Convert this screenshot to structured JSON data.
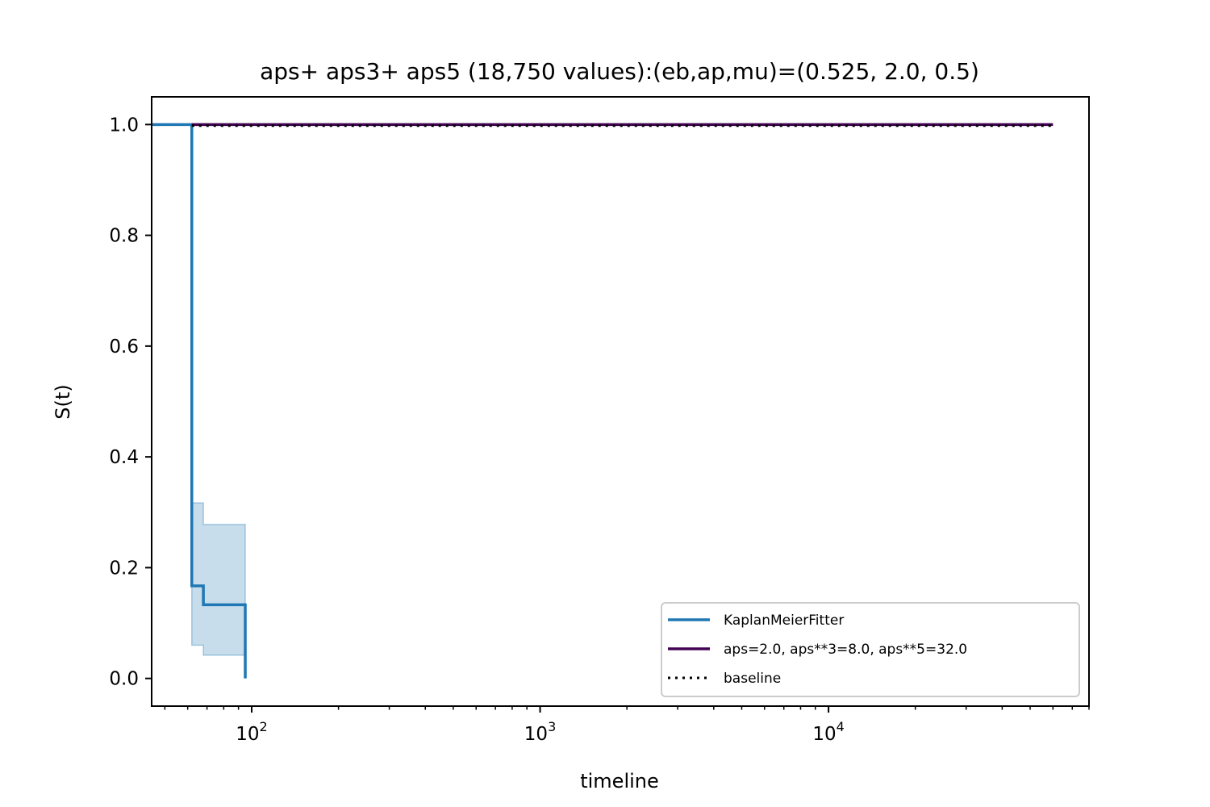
{
  "chart_data": {
    "type": "line",
    "title": "aps+ aps3+ aps5 (18,750 values):(eb,ap,mu)=(0.525, 2.0, 0.5)",
    "xlabel": "timeline",
    "ylabel": "S(t)",
    "xscale": "log",
    "xlim": [
      45,
      80000
    ],
    "ylim": [
      -0.05,
      1.05
    ],
    "grid": false,
    "legend_position": "lower-right",
    "x_ticks": [
      {
        "value": 100,
        "base": "10",
        "exp": "2"
      },
      {
        "value": 1000,
        "base": "10",
        "exp": "3"
      },
      {
        "value": 10000,
        "base": "10",
        "exp": "4"
      }
    ],
    "y_ticks": [
      {
        "value": 0.0,
        "label": "0.0"
      },
      {
        "value": 0.2,
        "label": "0.2"
      },
      {
        "value": 0.4,
        "label": "0.4"
      },
      {
        "value": 0.6,
        "label": "0.6"
      },
      {
        "value": 0.8,
        "label": "0.8"
      },
      {
        "value": 1.0,
        "label": "1.0"
      }
    ],
    "series": [
      {
        "name": "KaplanMeierFitter",
        "style": "step",
        "color": "#1f77b4",
        "x": [
          45,
          62,
          62,
          68,
          68,
          95,
          95
        ],
        "y": [
          1.0,
          1.0,
          0.167,
          0.167,
          0.133,
          0.133,
          0.0
        ],
        "ci_upper": {
          "x": [
            62,
            68,
            68,
            95
          ],
          "y": [
            0.317,
            0.317,
            0.278,
            0.278
          ]
        },
        "ci_lower": {
          "x": [
            62,
            68,
            68,
            95
          ],
          "y": [
            0.06,
            0.06,
            0.042,
            0.042
          ]
        },
        "ci_color": "#1f77b4"
      },
      {
        "name": "aps=2.0, aps**3=8.0, aps**5=32.0",
        "style": "solid",
        "color": "#440154",
        "x": [
          62,
          60000
        ],
        "y": [
          1.0,
          1.0
        ]
      },
      {
        "name": "baseline",
        "style": "dotted",
        "color": "#000000",
        "x": [
          62,
          60000
        ],
        "y": [
          0.998,
          0.998
        ]
      }
    ]
  }
}
